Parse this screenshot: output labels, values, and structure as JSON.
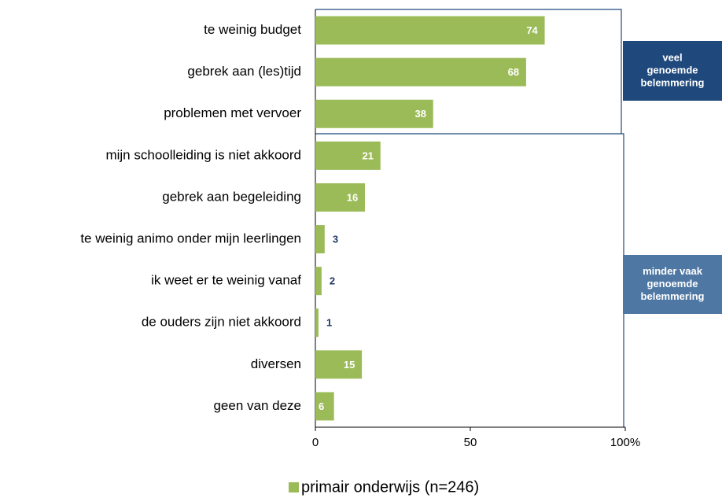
{
  "chart_data": {
    "type": "bar",
    "orientation": "horizontal",
    "categories": [
      "te weinig budget",
      "gebrek aan (les)tijd",
      "problemen met vervoer",
      "mijn schoolleiding is niet akkoord",
      "gebrek aan begeleiding",
      "te weinig animo onder mijn leerlingen",
      "ik weet er te weinig vanaf",
      "de ouders zijn niet akkoord",
      "diversen",
      "geen van deze"
    ],
    "series": [
      {
        "name": "primair onderwijs (n=246)",
        "color": "#9bbb59",
        "values": [
          74,
          68,
          38,
          21,
          16,
          3,
          2,
          1,
          15,
          6
        ]
      }
    ],
    "xlim": [
      0,
      100
    ],
    "xticks": [
      0,
      50,
      {
        "value": 100,
        "label": "100%"
      }
    ],
    "grid": false,
    "legend": "bottom",
    "annotations": [
      {
        "lines": [
          "veel",
          "genoemde",
          "belemmering"
        ],
        "color": "#1f497d"
      },
      {
        "lines": [
          "minder vaak",
          "genoemde",
          "belemmering"
        ],
        "color": "#4f77a3"
      }
    ]
  }
}
